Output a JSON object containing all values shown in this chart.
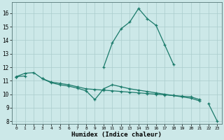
{
  "xlabel": "Humidex (Indice chaleur)",
  "bg_color": "#cce8e8",
  "grid_color": "#b0d0d0",
  "line_color": "#1a7a6a",
  "x_values": [
    0,
    1,
    2,
    3,
    4,
    5,
    6,
    7,
    8,
    9,
    10,
    11,
    12,
    13,
    14,
    15,
    16,
    17,
    18,
    19,
    20,
    21,
    22,
    23
  ],
  "curve1": [
    11.3,
    11.55,
    11.6,
    11.15,
    10.9,
    10.8,
    10.7,
    10.55,
    10.4,
    10.35,
    10.3,
    10.25,
    10.2,
    10.15,
    10.1,
    10.05,
    10.0,
    9.95,
    9.9,
    9.85,
    9.8,
    9.6,
    null,
    null
  ],
  "curve2": [
    11.3,
    11.35,
    null,
    11.15,
    10.85,
    10.7,
    10.6,
    10.45,
    10.25,
    9.6,
    10.4,
    10.7,
    10.55,
    10.4,
    10.3,
    10.2,
    10.1,
    10.0,
    9.9,
    9.8,
    9.7,
    9.5,
    null,
    null
  ],
  "curve3": [
    11.3,
    null,
    null,
    null,
    null,
    null,
    null,
    null,
    null,
    null,
    null,
    null,
    null,
    null,
    null,
    null,
    null,
    null,
    null,
    null,
    null,
    null,
    9.3,
    8.0
  ],
  "xlim": [
    -0.5,
    23.5
  ],
  "ylim": [
    7.8,
    16.8
  ],
  "yticks": [
    8,
    9,
    10,
    11,
    12,
    13,
    14,
    15,
    16
  ],
  "xtick_labels": [
    "0",
    "1",
    "2",
    "3",
    "4",
    "5",
    "6",
    "7",
    "8",
    "9",
    "10",
    "11",
    "12",
    "13",
    "14",
    "15",
    "16",
    "17",
    "18",
    "19",
    "20",
    "21",
    "22",
    "23"
  ],
  "peak_curve": [
    null,
    null,
    null,
    null,
    null,
    null,
    null,
    null,
    null,
    null,
    12.0,
    13.8,
    14.85,
    15.35,
    16.35,
    15.6,
    15.1,
    13.65,
    12.2,
    null,
    null,
    null,
    null,
    null
  ]
}
